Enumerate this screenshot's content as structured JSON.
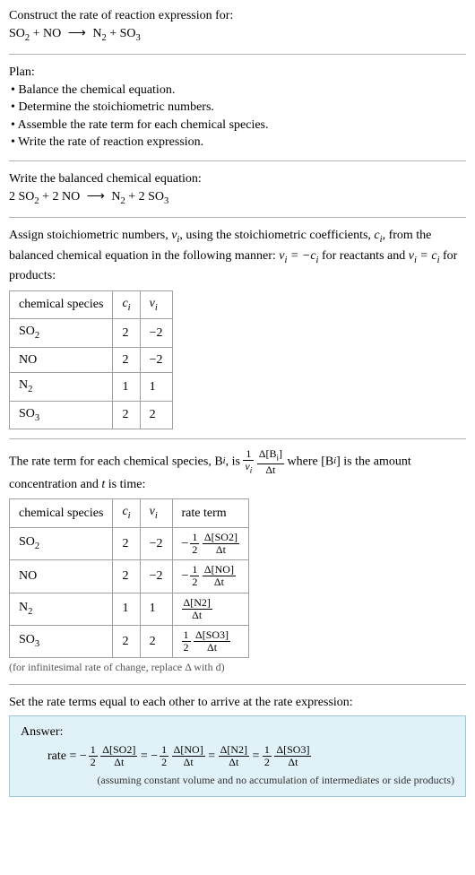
{
  "header": {
    "prompt": "Construct the rate of reaction expression for:",
    "equation_lhs": "SO₂ + NO",
    "arrow": "⟶",
    "equation_rhs": "N₂ + SO₃"
  },
  "plan": {
    "title": "Plan:",
    "items": [
      "• Balance the chemical equation.",
      "• Determine the stoichiometric numbers.",
      "• Assemble the rate term for each chemical species.",
      "• Write the rate of reaction expression."
    ]
  },
  "balanced": {
    "title": "Write the balanced chemical equation:",
    "lhs": "2 SO₂ + 2 NO",
    "arrow": "⟶",
    "rhs": "N₂ + 2 SO₃"
  },
  "stoich_intro": {
    "text1": "Assign stoichiometric numbers, ",
    "nu_i": "ν",
    "nu_sub": "i",
    "text2": ", using the stoichiometric coefficients, ",
    "c_i": "c",
    "c_sub": "i",
    "text3": ", from the balanced chemical equation in the following manner: ",
    "rel_reactants": "νᵢ = −cᵢ",
    "text4": " for reactants and ",
    "rel_products": "νᵢ = cᵢ",
    "text5": " for products:"
  },
  "stoich_table": {
    "headers": [
      "chemical species",
      "cᵢ",
      "νᵢ"
    ],
    "rows": [
      [
        "SO₂",
        "2",
        "−2"
      ],
      [
        "NO",
        "2",
        "−2"
      ],
      [
        "N₂",
        "1",
        "1"
      ],
      [
        "SO₃",
        "2",
        "2"
      ]
    ]
  },
  "rate_intro": {
    "text1": "The rate term for each chemical species, B",
    "sub_i": "i",
    "text2": ", is ",
    "one": "1",
    "nu_i": "νᵢ",
    "dBi": "Δ[Bᵢ]",
    "dt": "Δt",
    "text3": " where [B",
    "text4": "] is the amount concentration and ",
    "t": "t",
    "text5": " is time:"
  },
  "rate_table": {
    "headers": [
      "chemical species",
      "cᵢ",
      "νᵢ",
      "rate term"
    ],
    "rows": [
      {
        "species": "SO₂",
        "c": "2",
        "nu": "−2",
        "sign": "−",
        "coef_num": "1",
        "coef_den": "2",
        "d_num": "Δ[SO2]",
        "d_den": "Δt"
      },
      {
        "species": "NO",
        "c": "2",
        "nu": "−2",
        "sign": "−",
        "coef_num": "1",
        "coef_den": "2",
        "d_num": "Δ[NO]",
        "d_den": "Δt"
      },
      {
        "species": "N₂",
        "c": "1",
        "nu": "1",
        "sign": "",
        "coef_num": "",
        "coef_den": "",
        "d_num": "Δ[N2]",
        "d_den": "Δt"
      },
      {
        "species": "SO₃",
        "c": "2",
        "nu": "2",
        "sign": "",
        "coef_num": "1",
        "coef_den": "2",
        "d_num": "Δ[SO3]",
        "d_den": "Δt"
      }
    ],
    "note": "(for infinitesimal rate of change, replace Δ with d)"
  },
  "final": {
    "intro": "Set the rate terms equal to each other to arrive at the rate expression:",
    "answer_label": "Answer:",
    "rate_prefix": "rate = ",
    "terms": [
      {
        "sign": "−",
        "coef_num": "1",
        "coef_den": "2",
        "d_num": "Δ[SO2]",
        "d_den": "Δt"
      },
      {
        "sign": "−",
        "coef_num": "1",
        "coef_den": "2",
        "d_num": "Δ[NO]",
        "d_den": "Δt"
      },
      {
        "sign": "",
        "coef_num": "",
        "coef_den": "",
        "d_num": "Δ[N2]",
        "d_den": "Δt"
      },
      {
        "sign": "",
        "coef_num": "1",
        "coef_den": "2",
        "d_num": "Δ[SO3]",
        "d_den": "Δt"
      }
    ],
    "eq": " = ",
    "assumption": "(assuming constant volume and no accumulation of intermediates or side products)"
  }
}
